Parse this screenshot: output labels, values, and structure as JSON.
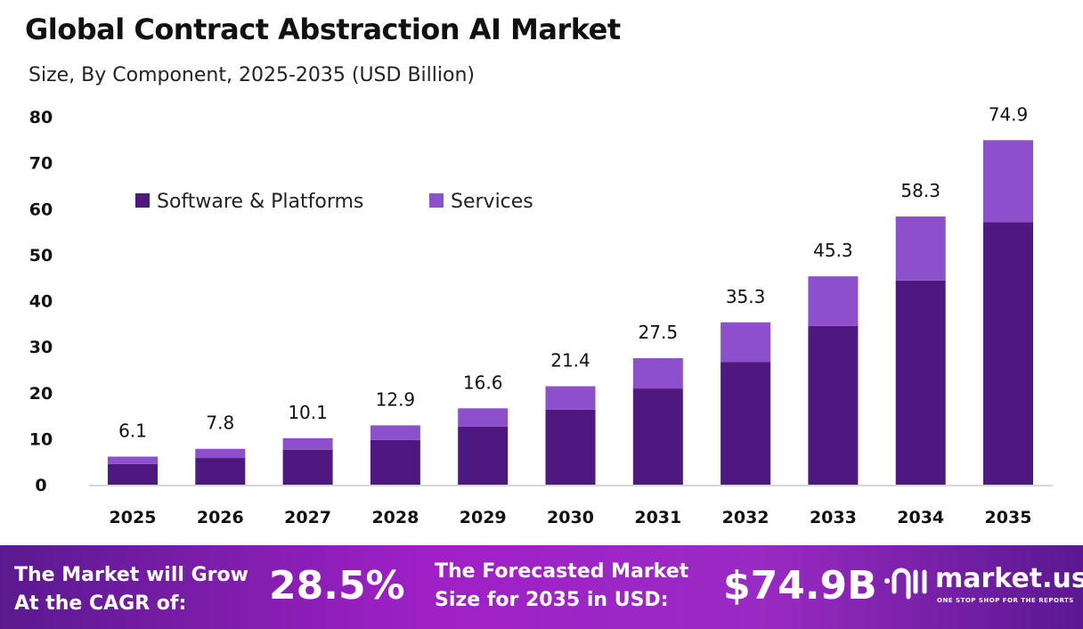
{
  "title": "Global Contract Abstraction AI Market",
  "subtitle": "Size, By Component, 2025-2035 (USD Billion)",
  "chart_data": {
    "type": "bar",
    "stacked": true,
    "categories": [
      "2025",
      "2026",
      "2027",
      "2028",
      "2029",
      "2030",
      "2031",
      "2032",
      "2033",
      "2034",
      "2035"
    ],
    "series": [
      {
        "name": "Software & Platforms",
        "color": "#4f1780",
        "values": [
          4.5,
          5.8,
          7.6,
          9.7,
          12.6,
          16.3,
          20.9,
          26.7,
          34.5,
          44.4,
          57.1
        ]
      },
      {
        "name": "Services",
        "color": "#8e4fcc",
        "values": [
          1.6,
          2.0,
          2.5,
          3.2,
          4.0,
          5.1,
          6.6,
          8.6,
          10.8,
          13.9,
          17.8
        ]
      }
    ],
    "totals": [
      "6.1",
      "7.8",
      "10.1",
      "12.9",
      "16.6",
      "21.4",
      "27.5",
      "35.3",
      "45.3",
      "58.3",
      "74.9"
    ],
    "yticks": [
      "0",
      "10",
      "20",
      "30",
      "40",
      "50",
      "60",
      "70",
      "80"
    ],
    "ylim": [
      0,
      80
    ],
    "grid": false,
    "legend_position": "top-left"
  },
  "footer": {
    "cagr_label_1": "The Market will Grow",
    "cagr_label_2": "At the CAGR of:",
    "cagr_value": "28.5%",
    "forecast_label_1": "The Forecasted Market",
    "forecast_label_2": "Size for 2035 in USD:",
    "forecast_value": "$74.9B",
    "logo_name": "market.us",
    "logo_tagline": "ONE STOP SHOP FOR THE REPORTS"
  }
}
